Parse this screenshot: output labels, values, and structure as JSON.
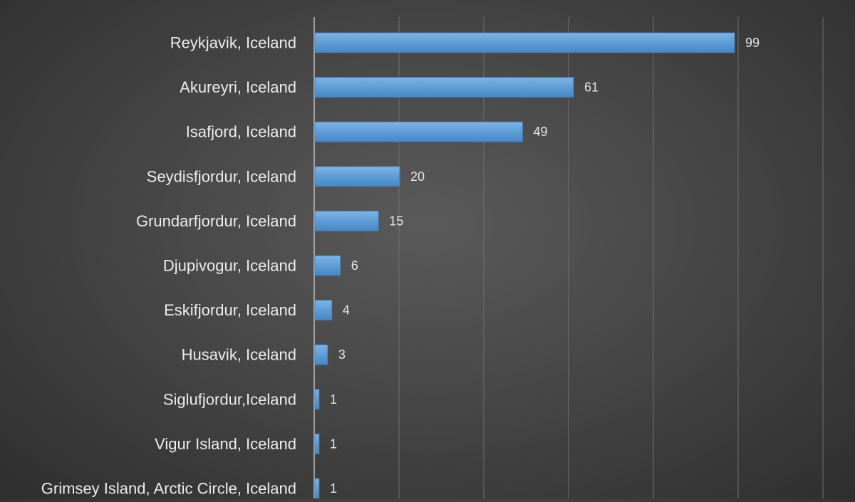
{
  "chart_data": {
    "type": "bar",
    "orientation": "horizontal",
    "title": "",
    "xlabel": "",
    "ylabel": "",
    "categories": [
      "Reykjavik, Iceland",
      "Akureyri, Iceland",
      "Isafjord, Iceland",
      "Seydisfjordur, Iceland",
      "Grundarfjordur, Iceland",
      "Djupivogur, Iceland",
      "Eskifjordur, Iceland",
      "Husavik, Iceland",
      "Siglufjordur,Iceland",
      "Vigur Island, Iceland",
      "Grimsey Island, Arctic Circle, Iceland"
    ],
    "values": [
      99,
      61,
      49,
      20,
      15,
      6,
      4,
      3,
      1,
      1,
      1
    ],
    "xlim": [
      0,
      120
    ],
    "grid": "vertical",
    "data_labels": true,
    "colors": {
      "bar": "#5b9bd5",
      "bar_edge": "#3a78b8",
      "label": "#ececec",
      "value_label": "#e6e6e6",
      "grid": "#6f6f6f",
      "axis": "#bfbfbf"
    }
  }
}
